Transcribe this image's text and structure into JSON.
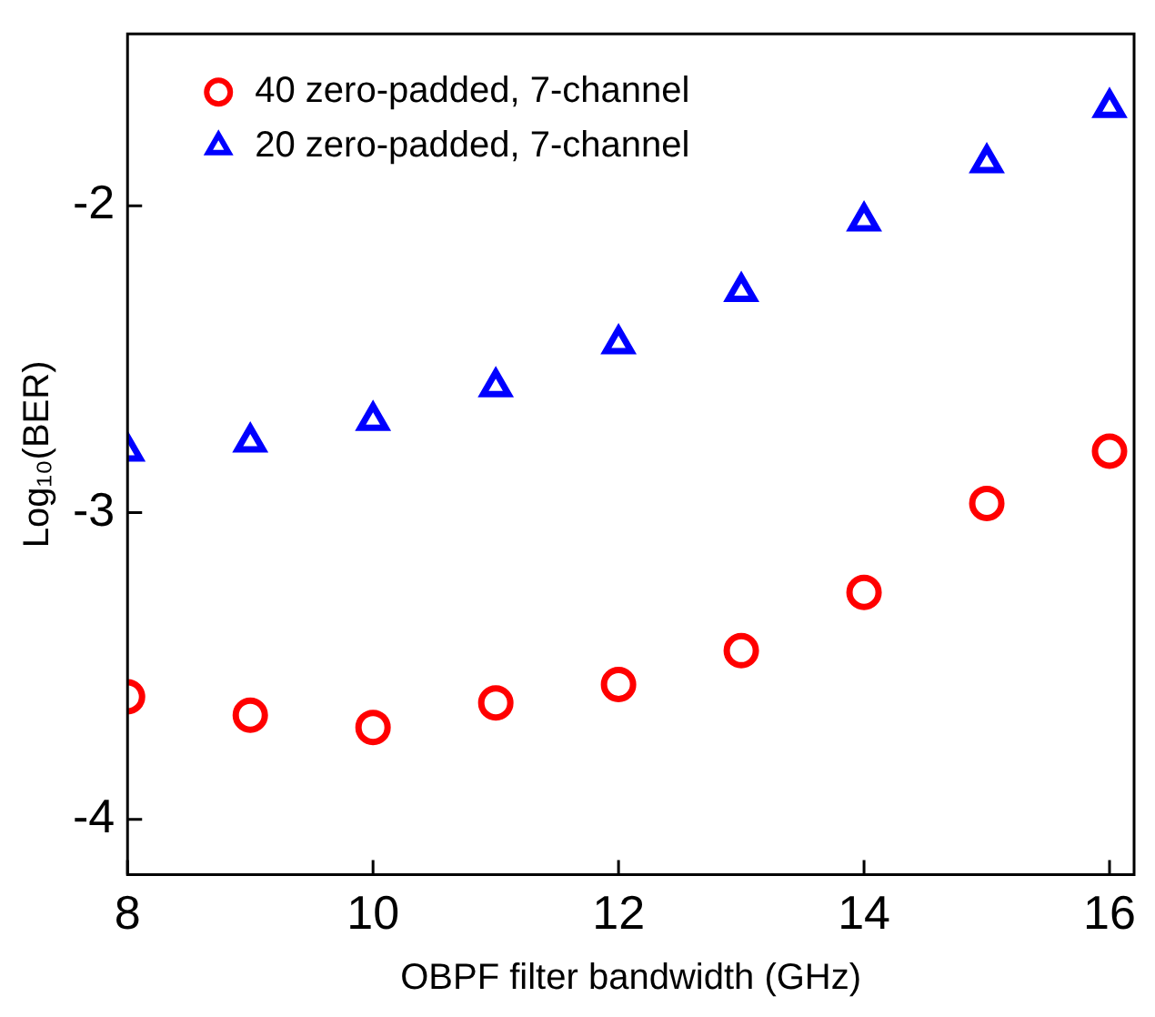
{
  "chart_data": {
    "type": "scatter",
    "xlabel": "OBPF filter bandwidth (GHz)",
    "ylabel": "Log₁₀(BER)",
    "xlim": [
      8,
      16.2
    ],
    "xticks": [
      8,
      10,
      12,
      14,
      16
    ],
    "ylim": [
      -4.18,
      -1.44
    ],
    "yticks": [
      -4,
      -3,
      -2
    ],
    "grid": false,
    "legend": "top left",
    "series": [
      {
        "name": "40 zero-padded, 7-channel",
        "color": "#ff0000",
        "marker": "circle",
        "x": [
          8,
          9,
          10,
          11,
          12,
          13,
          14,
          15,
          16
        ],
        "values": [
          -3.6,
          -3.66,
          -3.7,
          -3.62,
          -3.56,
          -3.45,
          -3.26,
          -2.97,
          -2.8
        ]
      },
      {
        "name": "20 zero-padded, 7-channel",
        "color": "#0000ff",
        "marker": "triangle",
        "x": [
          8,
          9,
          10,
          11,
          12,
          13,
          14,
          15,
          16
        ],
        "values": [
          -2.8,
          -2.77,
          -2.7,
          -2.59,
          -2.45,
          -2.28,
          -2.05,
          -1.86,
          -1.68
        ]
      }
    ]
  }
}
